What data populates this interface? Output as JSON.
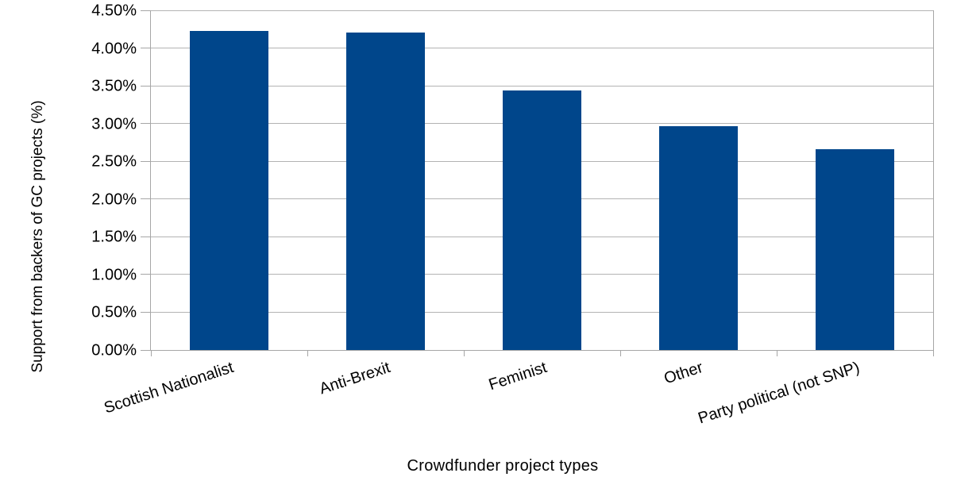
{
  "chart_data": {
    "type": "bar",
    "title": "",
    "categories": [
      "Scottish Nationalist",
      "Anti-Brexit",
      "Feminist",
      "Other",
      "Party political (not SNP)"
    ],
    "values": [
      4.23,
      4.21,
      3.44,
      2.97,
      2.66
    ],
    "value_unit": "%",
    "xlabel": "Crowdfunder project types",
    "ylabel": "Support from backers of GC projects (%)",
    "ylim": [
      0,
      4.5
    ],
    "ytick_step": 0.5,
    "ytick_labels": [
      "0.00%",
      "0.50%",
      "1.00%",
      "1.50%",
      "2.00%",
      "2.50%",
      "3.00%",
      "3.50%",
      "4.00%",
      "4.50%"
    ],
    "grid": true,
    "legend": false,
    "colors": {
      "bar": "#00468b",
      "grid": "#b3b3b3",
      "axis": "#a6a6a6",
      "text": "#000000",
      "background": "#ffffff"
    }
  }
}
